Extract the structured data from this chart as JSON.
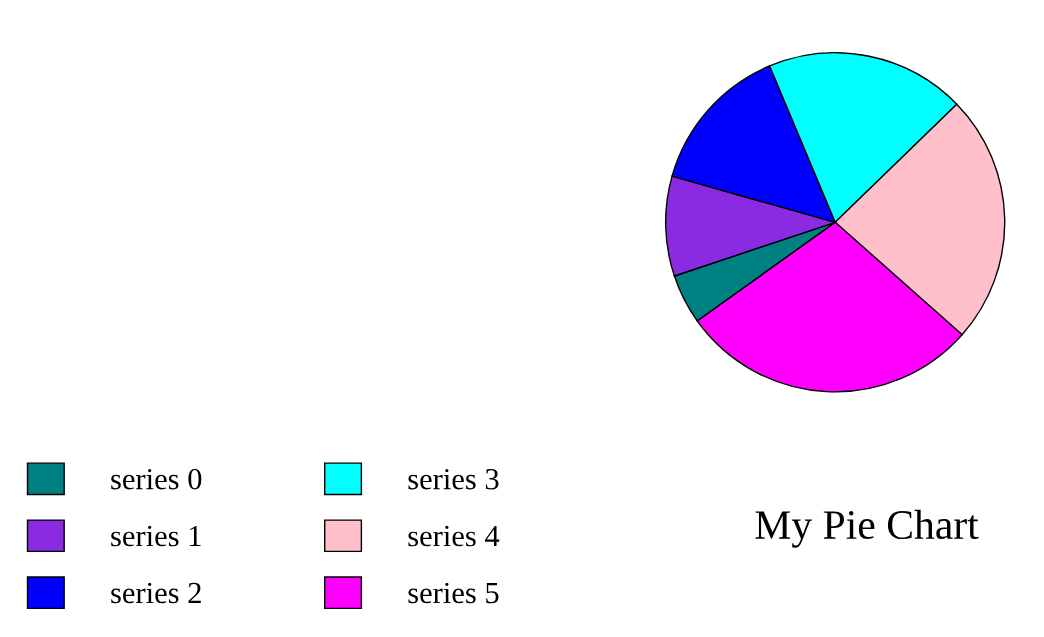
{
  "chart_data": {
    "type": "pie",
    "title": "My Pie Chart",
    "categories": [
      "series 0",
      "series 1",
      "series 2",
      "series 3",
      "series 4",
      "series 5"
    ],
    "values": [
      4.76,
      9.52,
      14.29,
      19.05,
      23.81,
      28.57
    ],
    "colors": [
      "#008080",
      "#8a2be2",
      "#0000ff",
      "#00ffff",
      "#ffc0cb",
      "#ff00ff"
    ],
    "legend": "bottom left"
  }
}
